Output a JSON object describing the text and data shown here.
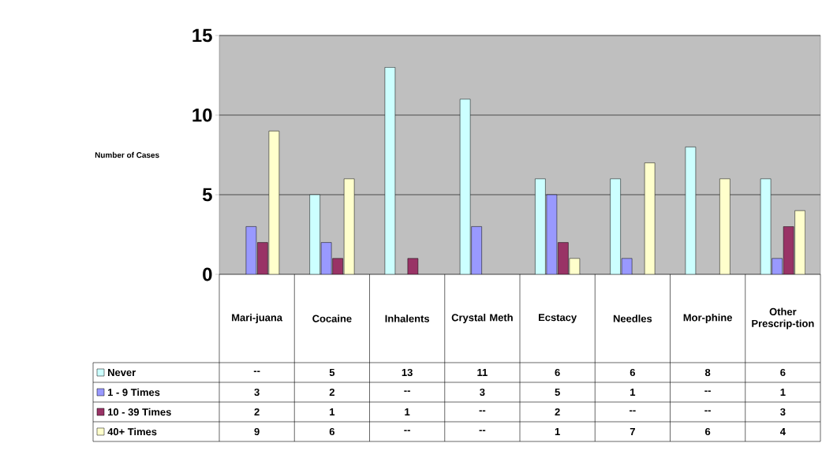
{
  "chart_data": {
    "type": "bar",
    "ylabel": "Number of Cases",
    "categories": [
      "Mari-juana",
      "Cocaine",
      "Inhalents",
      "Crystal Meth",
      "Ecstacy",
      "Needles",
      "Mor-phine",
      "Other Prescrip-tion"
    ],
    "series": [
      {
        "name": "Never",
        "color": "#ccffff",
        "values": [
          null,
          5,
          13,
          11,
          6,
          6,
          8,
          6
        ],
        "value_labels": [
          "--",
          "5",
          "13",
          "11",
          "6",
          "6",
          "8",
          "6"
        ]
      },
      {
        "name": "1 - 9 Times",
        "color": "#9999ff",
        "values": [
          3,
          2,
          null,
          3,
          5,
          1,
          null,
          1
        ],
        "value_labels": [
          "3",
          "2",
          "--",
          "3",
          "5",
          "1",
          "--",
          "1"
        ]
      },
      {
        "name": "10 - 39 Times",
        "color": "#993366",
        "values": [
          2,
          1,
          1,
          null,
          2,
          null,
          null,
          3
        ],
        "value_labels": [
          "2",
          "1",
          "1",
          "--",
          "2",
          "--",
          "--",
          "3"
        ]
      },
      {
        "name": "40+ Times",
        "color": "#ffffcc",
        "values": [
          9,
          6,
          null,
          null,
          1,
          7,
          6,
          4
        ],
        "value_labels": [
          "9",
          "6",
          "--",
          "--",
          "1",
          "7",
          "6",
          "4"
        ]
      }
    ],
    "ylim": [
      0,
      15
    ],
    "yticks": [
      0,
      5,
      10,
      15
    ],
    "grid": "y",
    "legend": "bottom left"
  }
}
